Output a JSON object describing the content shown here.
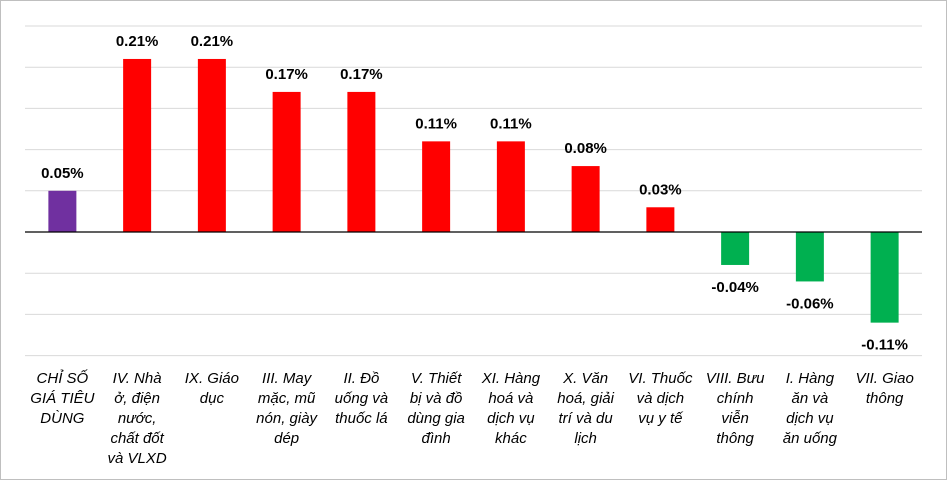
{
  "chart_data": {
    "type": "bar",
    "title": "",
    "xlabel": "",
    "ylabel": "",
    "ylim": [
      -0.15,
      0.25
    ],
    "grid": true,
    "legend": "none",
    "categories": [
      "CHỈ SỐ GIÁ TIÊU DÙNG",
      "IV. Nhà ở, điện nước, chất đốt và VLXD",
      "IX. Giáo dục",
      "III. May mặc, mũ nón, giày dép",
      "II. Đồ uống và thuốc lá",
      "V. Thiết bị và đồ dùng gia đình",
      "XI. Hàng hoá và dịch vụ khác",
      "X. Văn hoá, giải trí và du lịch",
      "VI. Thuốc và dịch vụ y tế",
      "VIII. Bưu chính viễn thông",
      "I. Hàng ăn và dịch vụ ăn uống",
      "VII. Giao thông"
    ],
    "category_lines": [
      [
        "CHỈ SỐ",
        "GIÁ TIÊU",
        "DÙNG"
      ],
      [
        "IV. Nhà",
        "ở, điện",
        "nước,",
        "chất đốt",
        "và VLXD"
      ],
      [
        "IX. Giáo",
        "dục"
      ],
      [
        "III. May",
        "mặc, mũ",
        "nón, giày",
        "dép"
      ],
      [
        "II. Đồ",
        "uống và",
        "thuốc lá"
      ],
      [
        "V. Thiết",
        "bị và đồ",
        "dùng gia",
        "đình"
      ],
      [
        "XI. Hàng",
        "hoá và",
        "dịch vụ",
        "khác"
      ],
      [
        "X. Văn",
        "hoá, giải",
        "trí và du",
        "lịch"
      ],
      [
        "VI. Thuốc",
        "và dịch",
        "vụ y tế"
      ],
      [
        "VIII. Bưu",
        "chính",
        "viễn",
        "thông"
      ],
      [
        "I. Hàng",
        "ăn và",
        "dịch vụ",
        "ăn uống"
      ],
      [
        "VII. Giao",
        "thông"
      ]
    ],
    "values": [
      0.05,
      0.21,
      0.21,
      0.17,
      0.17,
      0.11,
      0.11,
      0.08,
      0.03,
      -0.04,
      -0.06,
      -0.11
    ],
    "data_labels": [
      "0.05%",
      "0.21%",
      "0.21%",
      "0.17%",
      "0.17%",
      "0.11%",
      "0.11%",
      "0.08%",
      "0.03%",
      "-0.04%",
      "-0.06%",
      "-0.11%"
    ],
    "colors": {
      "index": "#7030a0",
      "increase": "#ff0000",
      "decrease": "#00b050",
      "gridline": "#d9d9d9",
      "axis": "#000000"
    }
  }
}
